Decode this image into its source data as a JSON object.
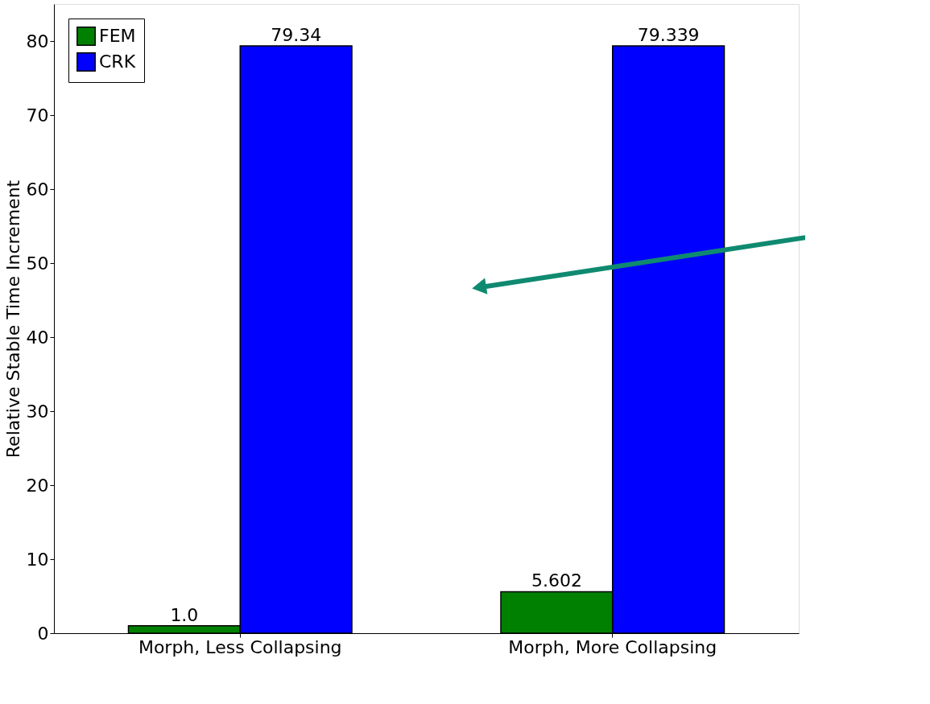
{
  "chart_data": {
    "type": "bar",
    "ylabel": "Relative Stable Time Increment",
    "categories": [
      "Morph, Less Collapsing",
      "Morph, More Collapsing"
    ],
    "series": [
      {
        "name": "FEM",
        "color": "#008000",
        "values": [
          1.0,
          5.602
        ],
        "value_labels": [
          "1.0",
          "5.602"
        ]
      },
      {
        "name": "CRK",
        "color": "#0000ff",
        "values": [
          79.34,
          79.339
        ],
        "value_labels": [
          "79.34",
          "79.339"
        ]
      }
    ],
    "ylim": [
      0,
      85
    ],
    "yticks": [
      0,
      10,
      20,
      30,
      40,
      50,
      60,
      70,
      80
    ],
    "grid": false,
    "legend": "top left"
  }
}
